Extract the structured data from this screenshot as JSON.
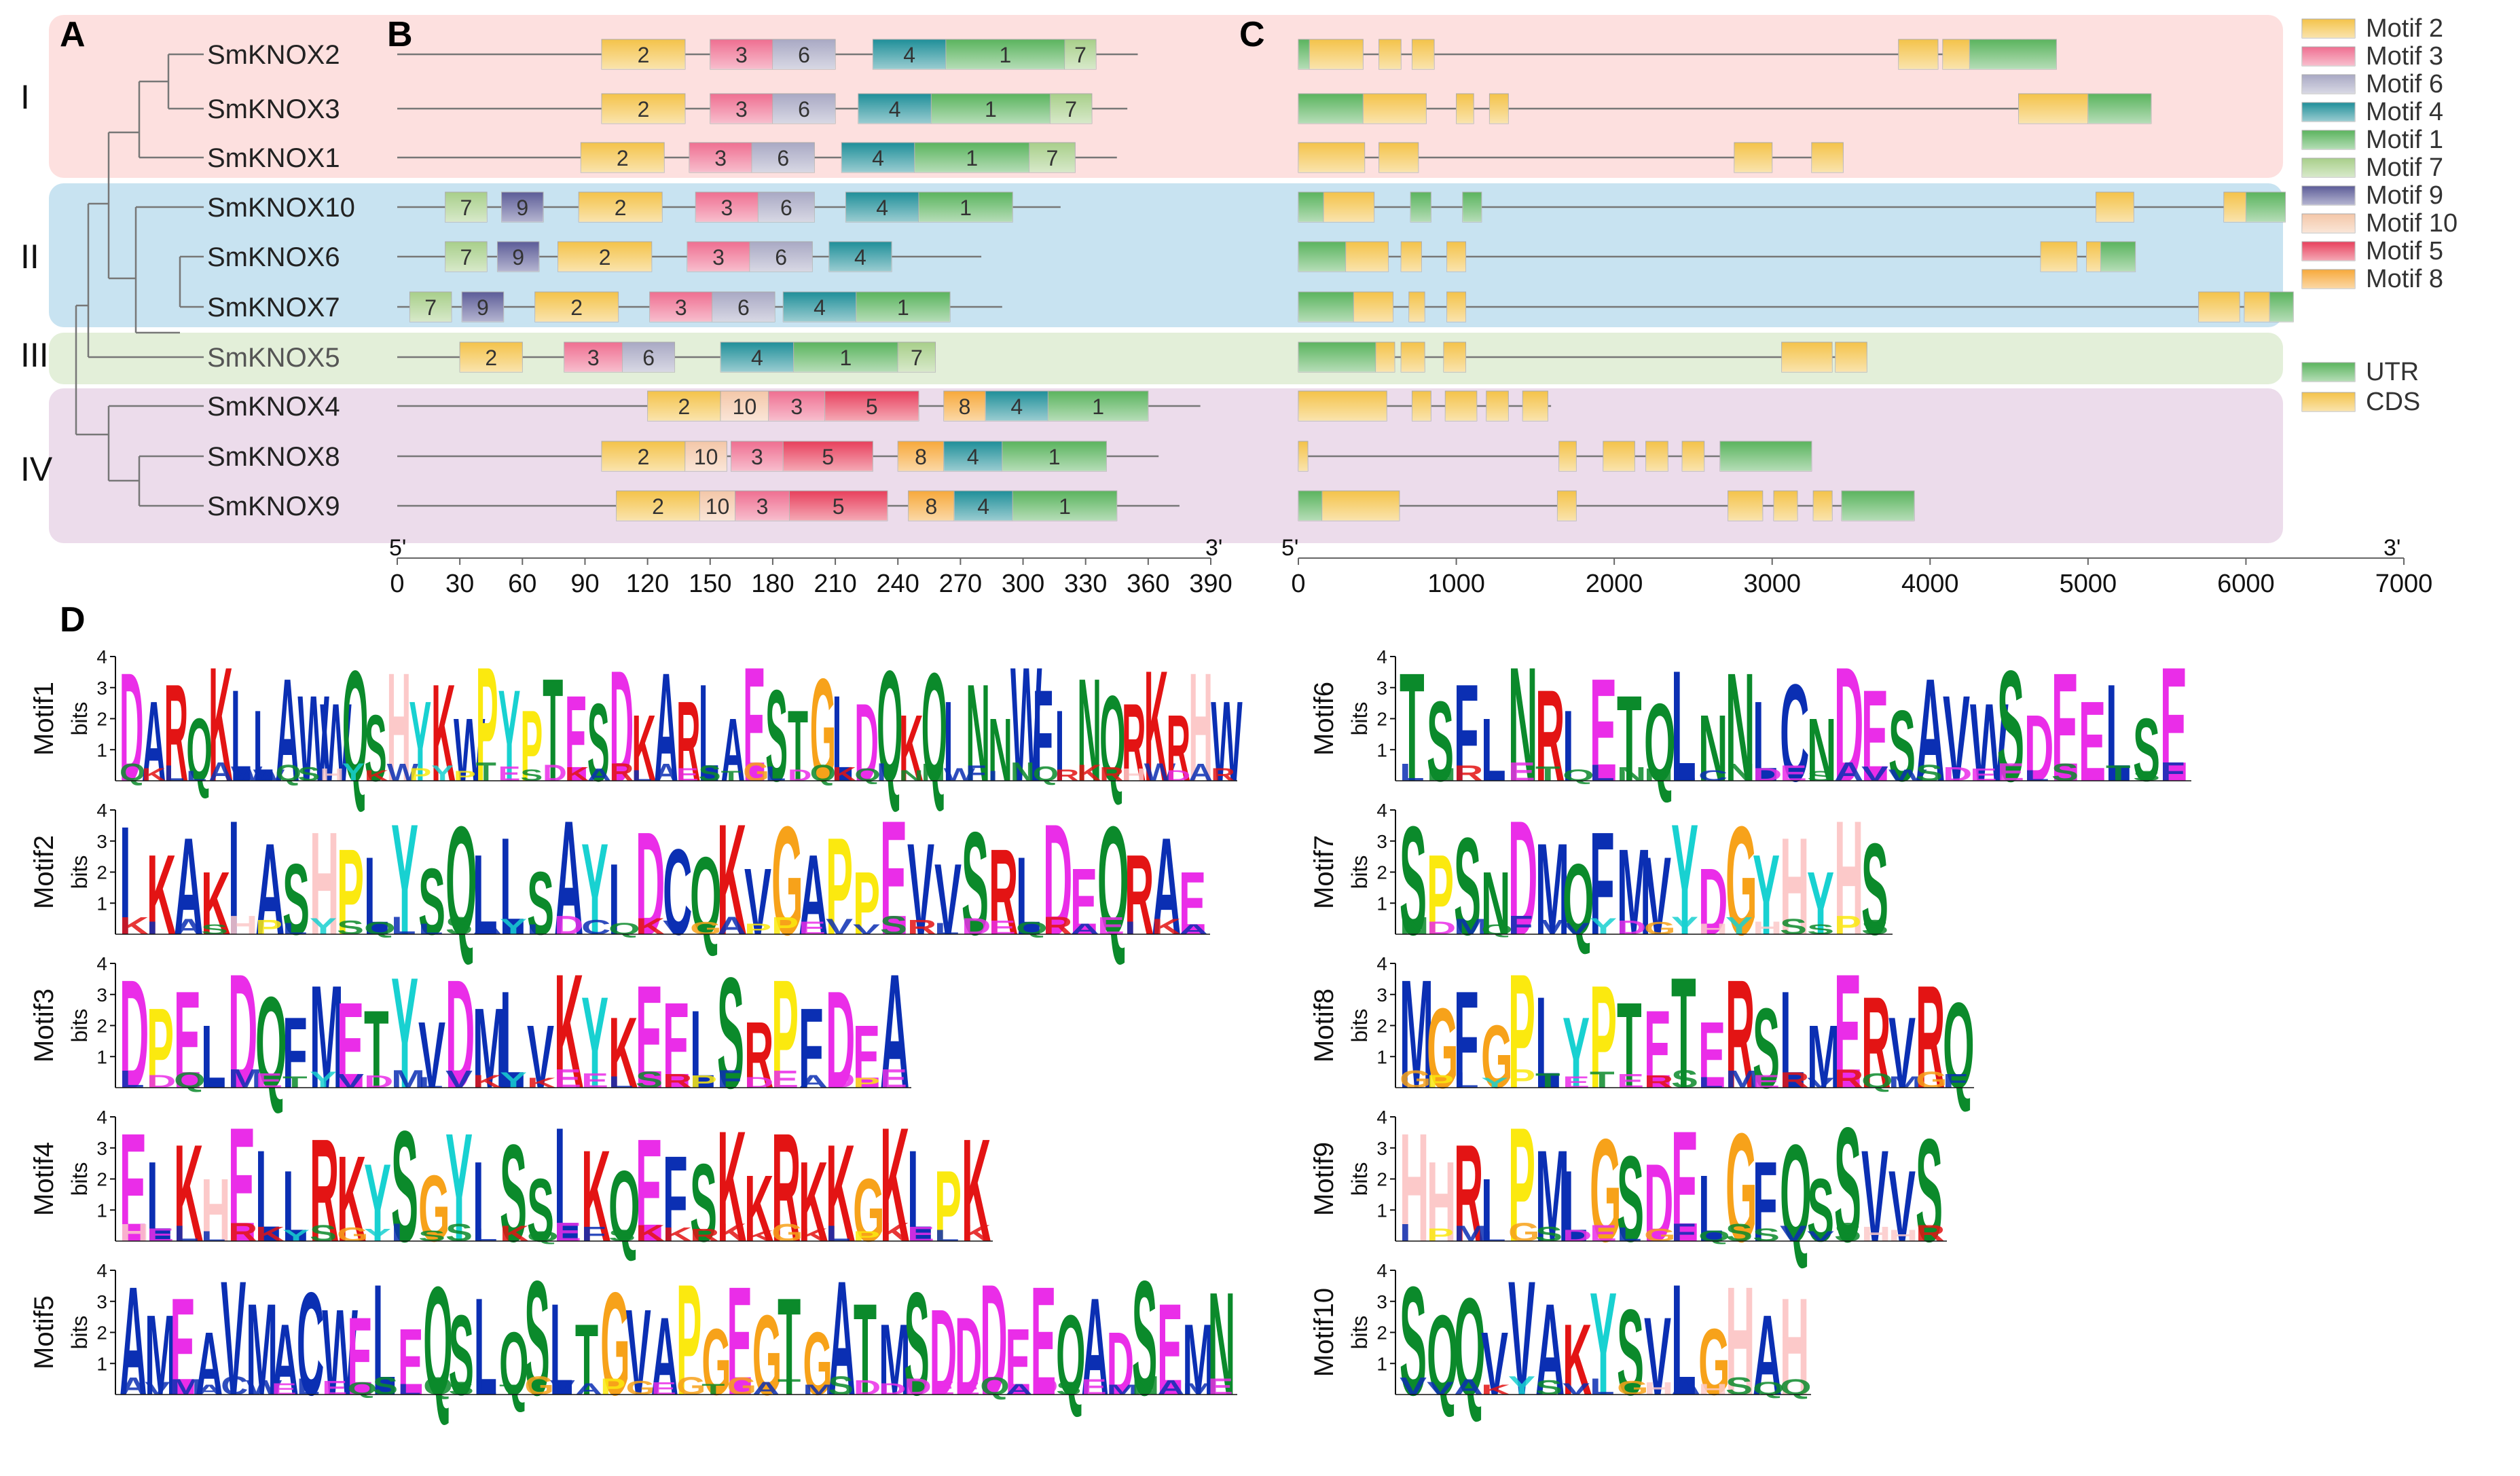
{
  "panel_labels": {
    "a": "A",
    "b": "B",
    "c": "C",
    "d": "D"
  },
  "colors": {
    "group_I": "#fde0df",
    "group_II": "#c8e3f1",
    "group_III": "#e3efd9",
    "group_IV": "#ecdceb",
    "motif_1": "#5bb45e",
    "motif_2": "#f4c34a",
    "motif_3": "#ef6f91",
    "motif_4": "#1f8f99",
    "motif_5": "#e8405c",
    "motif_6": "#a9a9c4",
    "motif_7": "#a8cf8a",
    "motif_8": "#f7a93b",
    "motif_9": "#5c5c98",
    "motif_10": "#f4c7a8",
    "utr": "#5bb45e",
    "cds": "#f4c34a",
    "line": "#777777"
  },
  "groups": [
    {
      "label": "I",
      "genes": [
        "SmKNOX2",
        "SmKNOX3",
        "SmKNOX1"
      ]
    },
    {
      "label": "II",
      "genes": [
        "SmKNOX10",
        "SmKNOX6",
        "SmKNOX7"
      ]
    },
    {
      "label": "III",
      "genes": [
        "SmKNOX5"
      ]
    },
    {
      "label": "IV",
      "genes": [
        "SmKNOX4",
        "SmKNOX8",
        "SmKNOX9"
      ]
    }
  ],
  "genes": [
    {
      "name": "SmKNOX2",
      "protein_len": 355,
      "motifs": [
        {
          "id": "2",
          "start": 98,
          "end": 138
        },
        {
          "id": "3",
          "start": 150,
          "end": 180
        },
        {
          "id": "6",
          "start": 180,
          "end": 210
        },
        {
          "id": "4",
          "start": 228,
          "end": 263
        },
        {
          "id": "1",
          "start": 263,
          "end": 320
        },
        {
          "id": "7",
          "start": 320,
          "end": 335
        }
      ],
      "gene_len": 4800,
      "struct": [
        {
          "t": "utr",
          "s": 0,
          "e": 70
        },
        {
          "t": "cds",
          "s": 70,
          "e": 410
        },
        {
          "t": "cds",
          "s": 510,
          "e": 650
        },
        {
          "t": "cds",
          "s": 720,
          "e": 860
        },
        {
          "t": "cds",
          "s": 3800,
          "e": 4050
        },
        {
          "t": "cds",
          "s": 4080,
          "e": 4250
        },
        {
          "t": "utr",
          "s": 4250,
          "e": 4800
        }
      ]
    },
    {
      "name": "SmKNOX3",
      "protein_len": 350,
      "motifs": [
        {
          "id": "2",
          "start": 98,
          "end": 138
        },
        {
          "id": "3",
          "start": 150,
          "end": 180
        },
        {
          "id": "6",
          "start": 180,
          "end": 210
        },
        {
          "id": "4",
          "start": 221,
          "end": 256
        },
        {
          "id": "1",
          "start": 256,
          "end": 313
        },
        {
          "id": "7",
          "start": 313,
          "end": 333
        }
      ],
      "gene_len": 5400,
      "struct": [
        {
          "t": "utr",
          "s": 0,
          "e": 410
        },
        {
          "t": "cds",
          "s": 410,
          "e": 810
        },
        {
          "t": "cds",
          "s": 1000,
          "e": 1110
        },
        {
          "t": "cds",
          "s": 1210,
          "e": 1330
        },
        {
          "t": "cds",
          "s": 4560,
          "e": 5000
        },
        {
          "t": "utr",
          "s": 5000,
          "e": 5400
        }
      ]
    },
    {
      "name": "SmKNOX1",
      "protein_len": 345,
      "motifs": [
        {
          "id": "2",
          "start": 88,
          "end": 128
        },
        {
          "id": "3",
          "start": 140,
          "end": 170
        },
        {
          "id": "6",
          "start": 170,
          "end": 200
        },
        {
          "id": "4",
          "start": 213,
          "end": 248
        },
        {
          "id": "1",
          "start": 248,
          "end": 303
        },
        {
          "id": "7",
          "start": 303,
          "end": 325
        }
      ],
      "gene_len": 3450,
      "struct": [
        {
          "t": "cds",
          "s": 0,
          "e": 420
        },
        {
          "t": "cds",
          "s": 510,
          "e": 760
        },
        {
          "t": "cds",
          "s": 2760,
          "e": 3000
        },
        {
          "t": "cds",
          "s": 3250,
          "e": 3450
        }
      ]
    },
    {
      "name": "SmKNOX10",
      "protein_len": 318,
      "motifs": [
        {
          "id": "7",
          "start": 23,
          "end": 43
        },
        {
          "id": "9",
          "start": 50,
          "end": 70
        },
        {
          "id": "2",
          "start": 87,
          "end": 127
        },
        {
          "id": "3",
          "start": 143,
          "end": 173
        },
        {
          "id": "6",
          "start": 173,
          "end": 200
        },
        {
          "id": "4",
          "start": 215,
          "end": 250
        },
        {
          "id": "1",
          "start": 250,
          "end": 295
        }
      ],
      "gene_len": 6250,
      "struct": [
        {
          "t": "utr",
          "s": 0,
          "e": 160
        },
        {
          "t": "cds",
          "s": 160,
          "e": 480
        },
        {
          "t": "utr",
          "s": 710,
          "e": 840
        },
        {
          "t": "utr",
          "s": 1040,
          "e": 1160
        },
        {
          "t": "cds",
          "s": 5050,
          "e": 5290
        },
        {
          "t": "cds",
          "s": 5860,
          "e": 6000
        },
        {
          "t": "utr",
          "s": 6000,
          "e": 6250
        }
      ]
    },
    {
      "name": "SmKNOX6",
      "protein_len": 280,
      "motifs": [
        {
          "id": "7",
          "start": 23,
          "end": 43
        },
        {
          "id": "9",
          "start": 48,
          "end": 68
        },
        {
          "id": "2",
          "start": 77,
          "end": 122
        },
        {
          "id": "3",
          "start": 139,
          "end": 169
        },
        {
          "id": "6",
          "start": 169,
          "end": 199
        },
        {
          "id": "4",
          "start": 207,
          "end": 237
        }
      ],
      "gene_len": 5300,
      "struct": [
        {
          "t": "utr",
          "s": 0,
          "e": 300
        },
        {
          "t": "cds",
          "s": 300,
          "e": 570
        },
        {
          "t": "cds",
          "s": 650,
          "e": 780
        },
        {
          "t": "cds",
          "s": 940,
          "e": 1060
        },
        {
          "t": "cds",
          "s": 4700,
          "e": 4930
        },
        {
          "t": "cds",
          "s": 4990,
          "e": 5080
        },
        {
          "t": "utr",
          "s": 5080,
          "e": 5300
        }
      ]
    },
    {
      "name": "SmKNOX7",
      "protein_len": 290,
      "motifs": [
        {
          "id": "7",
          "start": 6,
          "end": 26
        },
        {
          "id": "9",
          "start": 31,
          "end": 51
        },
        {
          "id": "2",
          "start": 66,
          "end": 106
        },
        {
          "id": "3",
          "start": 121,
          "end": 151
        },
        {
          "id": "6",
          "start": 151,
          "end": 181
        },
        {
          "id": "4",
          "start": 185,
          "end": 220
        },
        {
          "id": "1",
          "start": 220,
          "end": 265
        }
      ],
      "gene_len": 6300,
      "struct": [
        {
          "t": "utr",
          "s": 0,
          "e": 350
        },
        {
          "t": "cds",
          "s": 350,
          "e": 600
        },
        {
          "t": "cds",
          "s": 700,
          "e": 800
        },
        {
          "t": "cds",
          "s": 940,
          "e": 1060
        },
        {
          "t": "cds",
          "s": 5700,
          "e": 5960
        },
        {
          "t": "cds",
          "s": 5990,
          "e": 6150
        },
        {
          "t": "utr",
          "s": 6150,
          "e": 6300
        }
      ]
    },
    {
      "name": "SmKNOX5",
      "protein_len": 258,
      "motifs": [
        {
          "id": "2",
          "start": 30,
          "end": 60
        },
        {
          "id": "3",
          "start": 80,
          "end": 108
        },
        {
          "id": "6",
          "start": 108,
          "end": 133
        },
        {
          "id": "4",
          "start": 155,
          "end": 190
        },
        {
          "id": "1",
          "start": 190,
          "end": 240
        },
        {
          "id": "7",
          "start": 240,
          "end": 258
        }
      ],
      "gene_len": 3600,
      "struct": [
        {
          "t": "utr",
          "s": 0,
          "e": 490
        },
        {
          "t": "cds",
          "s": 490,
          "e": 610
        },
        {
          "t": "cds",
          "s": 650,
          "e": 800
        },
        {
          "t": "cds",
          "s": 920,
          "e": 1060
        },
        {
          "t": "cds",
          "s": 3060,
          "e": 3380
        },
        {
          "t": "cds",
          "s": 3400,
          "e": 3600
        }
      ]
    },
    {
      "name": "SmKNOX4",
      "protein_len": 385,
      "motifs": [
        {
          "id": "2",
          "start": 120,
          "end": 155
        },
        {
          "id": "10",
          "start": 155,
          "end": 178
        },
        {
          "id": "3",
          "start": 178,
          "end": 205
        },
        {
          "id": "5",
          "start": 205,
          "end": 250
        },
        {
          "id": "8",
          "start": 262,
          "end": 282
        },
        {
          "id": "4",
          "start": 282,
          "end": 312
        },
        {
          "id": "1",
          "start": 312,
          "end": 360
        }
      ],
      "gene_len": 1600,
      "struct": [
        {
          "t": "cds",
          "s": 0,
          "e": 560
        },
        {
          "t": "cds",
          "s": 720,
          "e": 840
        },
        {
          "t": "cds",
          "s": 930,
          "e": 1130
        },
        {
          "t": "cds",
          "s": 1190,
          "e": 1330
        },
        {
          "t": "cds",
          "s": 1420,
          "e": 1580
        }
      ]
    },
    {
      "name": "SmKNOX8",
      "protein_len": 365,
      "motifs": [
        {
          "id": "2",
          "start": 98,
          "end": 138
        },
        {
          "id": "10",
          "start": 138,
          "end": 158
        },
        {
          "id": "3",
          "start": 160,
          "end": 185
        },
        {
          "id": "5",
          "start": 185,
          "end": 228
        },
        {
          "id": "8",
          "start": 240,
          "end": 262
        },
        {
          "id": "4",
          "start": 262,
          "end": 290
        },
        {
          "id": "1",
          "start": 290,
          "end": 340
        }
      ],
      "gene_len": 3250,
      "struct": [
        {
          "t": "cds",
          "s": 0,
          "e": 60
        },
        {
          "t": "cds",
          "s": 1650,
          "e": 1760
        },
        {
          "t": "cds",
          "s": 1930,
          "e": 2130
        },
        {
          "t": "cds",
          "s": 2200,
          "e": 2340
        },
        {
          "t": "cds",
          "s": 2430,
          "e": 2570
        },
        {
          "t": "utr",
          "s": 2670,
          "e": 3250
        }
      ]
    },
    {
      "name": "SmKNOX9",
      "protein_len": 375,
      "motifs": [
        {
          "id": "2",
          "start": 105,
          "end": 145
        },
        {
          "id": "10",
          "start": 145,
          "end": 162
        },
        {
          "id": "3",
          "start": 162,
          "end": 188
        },
        {
          "id": "5",
          "start": 188,
          "end": 235
        },
        {
          "id": "8",
          "start": 245,
          "end": 267
        },
        {
          "id": "4",
          "start": 267,
          "end": 295
        },
        {
          "id": "1",
          "start": 295,
          "end": 345
        }
      ],
      "gene_len": 3900,
      "struct": [
        {
          "t": "utr",
          "s": 0,
          "e": 150
        },
        {
          "t": "cds",
          "s": 150,
          "e": 640
        },
        {
          "t": "cds",
          "s": 1640,
          "e": 1760
        },
        {
          "t": "cds",
          "s": 2720,
          "e": 2940
        },
        {
          "t": "cds",
          "s": 3010,
          "e": 3160
        },
        {
          "t": "cds",
          "s": 3260,
          "e": 3380
        },
        {
          "t": "utr",
          "s": 3440,
          "e": 3900
        }
      ]
    }
  ],
  "axis_b": {
    "five_prime": "5'",
    "three_prime": "3'",
    "ticks": [
      "0",
      "30",
      "60",
      "90",
      "120",
      "150",
      "180",
      "210",
      "240",
      "270",
      "300",
      "330",
      "360",
      "390"
    ]
  },
  "axis_c": {
    "five_prime": "5'",
    "three_prime": "3'",
    "ticks": [
      "0",
      "1000",
      "2000",
      "3000",
      "4000",
      "5000",
      "6000",
      "7000"
    ]
  },
  "legend": [
    {
      "label": "Motif 2",
      "key": "motif_2"
    },
    {
      "label": "Motif 3",
      "key": "motif_3"
    },
    {
      "label": "Motif 6",
      "key": "motif_6"
    },
    {
      "label": "Motif 4",
      "key": "motif_4"
    },
    {
      "label": "Motif 1",
      "key": "motif_1"
    },
    {
      "label": "Motif 7",
      "key": "motif_7"
    },
    {
      "label": "Motif 9",
      "key": "motif_9"
    },
    {
      "label": "Motif 10",
      "key": "motif_10"
    },
    {
      "label": "Motif 5",
      "key": "motif_5"
    },
    {
      "label": "Motif 8",
      "key": "motif_8"
    }
  ],
  "legend_structure": [
    {
      "label": "UTR",
      "key": "utr"
    },
    {
      "label": "CDS",
      "key": "cds"
    }
  ],
  "logo_axis": {
    "ylabel": "bits",
    "ticks": [
      "4",
      "3",
      "2",
      "1"
    ]
  },
  "logo_colors": {
    "A": "#0b2fb3",
    "V": "#0b2fb3",
    "M": "#0b2fb3",
    "L": "#0b2fb3",
    "I": "#0b2fb3",
    "W": "#0b2fb3",
    "F": "#0b2fb3",
    "C": "#0b2fb3",
    "D": "#ea2de8",
    "E": "#ea2de8",
    "K": "#e31414",
    "R": "#e31414",
    "H": "#fcc9c9",
    "G": "#f7a21a",
    "P": "#fbe90f",
    "Y": "#18d1d1",
    "S": "#0b8a2b",
    "T": "#0b8a2b",
    "N": "#0b8a2b",
    "Q": "#0b8a2b",
    "X": "#888888"
  },
  "logos": [
    {
      "name": "Motif1",
      "seq": "DARQKLLAWWQSHYKWPYPTESDKARLAESTGLDQKQINNWFINQRKRHW"
    },
    {
      "name": "Motif2",
      "seq": "IKAKIASHPLYSQLLSAYIDCQKVGAPPEVVSRLDEQRAE"
    },
    {
      "name": "Motif3",
      "seq": "DPELDQFMETYVDMLVKYKEELSRPFDEA"
    },
    {
      "name": "Motif4",
      "seq": "ELKHELLRKYSGYISSLKQEFSKKRKKGKLPK"
    },
    {
      "name": "Motif5",
      "seq": "AMEAVMACWELEQSLQSLTGVAPGEGTGATMSDDDEEQADSEMN"
    },
    {
      "name": "Motif6",
      "seq": "TSFLNRIETQLNNLCNDESAVWSDEELSE"
    },
    {
      "name": "Motif7",
      "seq": "SPSNDMQFMVYDGYHYHS"
    },
    {
      "name": "Motif8",
      "seq": "MGFGPLYPTETERSLMERVRQ"
    },
    {
      "name": "Motif9",
      "seq": "HHRIPMLGSDELGFQSSVVS"
    },
    {
      "name": "Motif10",
      "seq": "SQQVVAKYSVLGHAH"
    }
  ]
}
